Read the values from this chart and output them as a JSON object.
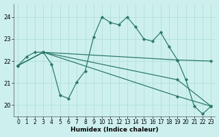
{
  "xlabel": "Humidex (Indice chaleur)",
  "bg_color": "#cdf0ee",
  "grid_color": "#aaddcc",
  "line_color": "#2d7a6a",
  "xlim": [
    -0.5,
    23.5
  ],
  "ylim": [
    19.5,
    24.6
  ],
  "yticks": [
    20,
    21,
    22,
    23,
    24
  ],
  "xtick_labels": [
    "0",
    "1",
    "2",
    "3",
    "4",
    "5",
    "6",
    "7",
    "8",
    "9",
    "10",
    "11",
    "12",
    "13",
    "14",
    "15",
    "16",
    "17",
    "18",
    "19",
    "20",
    "21",
    "22",
    "23"
  ],
  "series": [
    {
      "x": [
        0,
        1,
        2,
        3,
        4,
        5,
        6,
        7,
        8,
        9,
        10,
        11,
        12,
        13,
        14,
        15,
        16,
        17,
        18,
        19,
        20,
        21,
        22,
        23
      ],
      "y": [
        21.8,
        22.2,
        22.4,
        22.4,
        21.85,
        20.45,
        20.3,
        21.05,
        21.55,
        23.1,
        24.0,
        23.75,
        23.65,
        24.0,
        23.55,
        23.0,
        22.9,
        23.3,
        22.65,
        22.05,
        21.15,
        19.95,
        19.6,
        19.95
      ]
    },
    {
      "x": [
        0,
        3,
        19,
        23
      ],
      "y": [
        21.8,
        22.4,
        22.05,
        22.0
      ]
    },
    {
      "x": [
        0,
        3,
        19,
        23
      ],
      "y": [
        21.8,
        22.4,
        21.15,
        19.95
      ]
    },
    {
      "x": [
        0,
        3,
        19,
        23
      ],
      "y": [
        21.8,
        22.4,
        20.4,
        19.95
      ]
    }
  ]
}
